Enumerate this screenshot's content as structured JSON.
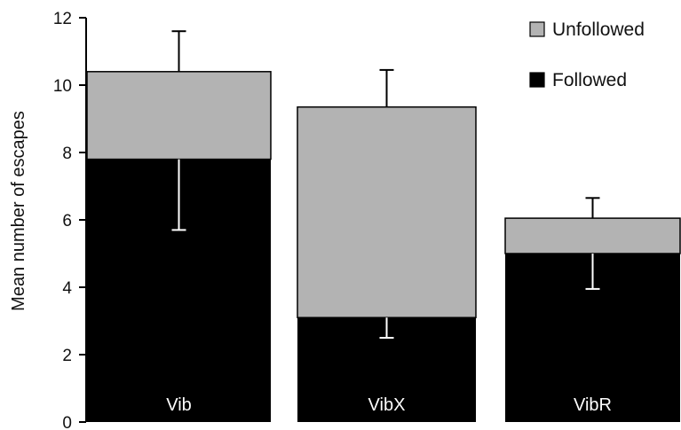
{
  "chart_data": {
    "type": "bar",
    "stacked": true,
    "ylabel": "Mean number of escapes",
    "xlabel": "",
    "ylim": [
      0,
      12
    ],
    "yticks": [
      0,
      2,
      4,
      6,
      8,
      10,
      12
    ],
    "categories": [
      "Vib",
      "VibX",
      "VibR"
    ],
    "series": [
      {
        "name": "Followed",
        "color": "#000000",
        "values": [
          7.8,
          3.1,
          5.0
        ],
        "error_low": [
          2.1,
          0.6,
          1.05
        ]
      },
      {
        "name": "Unfollowed",
        "color": "#b3b3b3",
        "values": [
          2.6,
          6.25,
          1.05
        ],
        "error_high": [
          1.2,
          1.1,
          0.6
        ]
      }
    ],
    "legend": {
      "position": "top-right",
      "order": [
        "Unfollowed",
        "Followed"
      ]
    },
    "category_labels_inside_bars": true,
    "grid": false
  }
}
